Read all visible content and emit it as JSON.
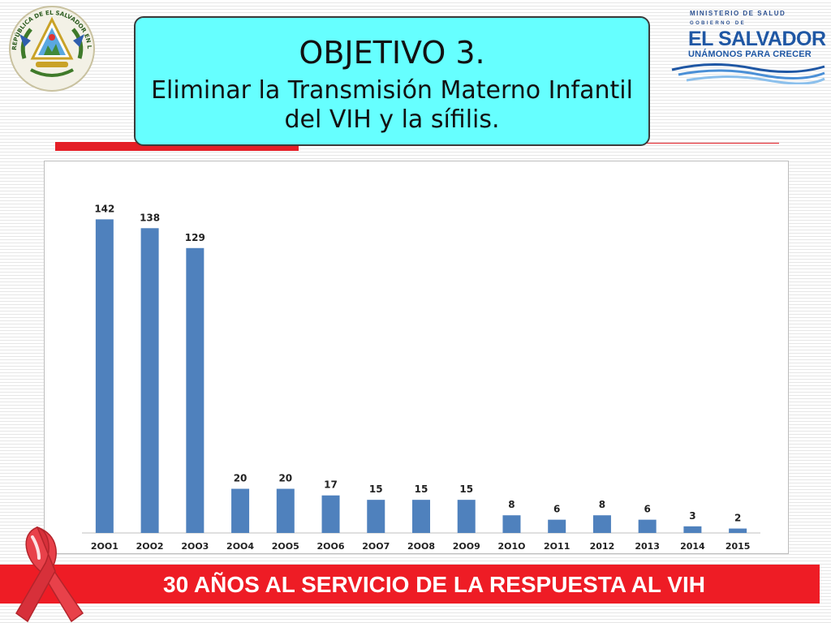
{
  "title_box": {
    "heading": "OBJETIVO 3.",
    "subtitle_line1": "Eliminar la Transmisión Materno Infantil",
    "subtitle_line2": "del VIH y la sífilis."
  },
  "ministry_logo": {
    "ministry": "MINISTERIO DE SALUD",
    "gobierno": "GOBIERNO DE",
    "country": "EL SALVADOR",
    "slogan": "UNÁMONOS PARA CRECER"
  },
  "seal": {
    "text": "REPÚBLICA DE EL SALVADOR EN LA AMÉRICA CENTRAL"
  },
  "footer": {
    "text": "30 AÑOS AL SERVICIO DE LA RESPUESTA AL VIH"
  },
  "colors": {
    "bar": "#4f81bd",
    "title_fill": "#66ffff",
    "footer_red": "#ee1c25",
    "ribbon": "#e8414a",
    "logo_blue": "#1f57a4"
  },
  "chart_data": {
    "type": "bar",
    "title": "",
    "xlabel": "",
    "ylabel": "",
    "categories": [
      "2OO1",
      "2OO2",
      "2OO3",
      "2OO4",
      "2OO5",
      "2OO6",
      "2OO7",
      "2OO8",
      "2OO9",
      "2O1O",
      "2O11",
      "2012",
      "2013",
      "2014",
      "2015"
    ],
    "values": [
      142,
      138,
      129,
      20,
      20,
      17,
      15,
      15,
      15,
      8,
      6,
      8,
      6,
      3,
      2
    ],
    "ylim": [
      0,
      160
    ],
    "grid": false,
    "legend": "none",
    "data_labels": true
  }
}
